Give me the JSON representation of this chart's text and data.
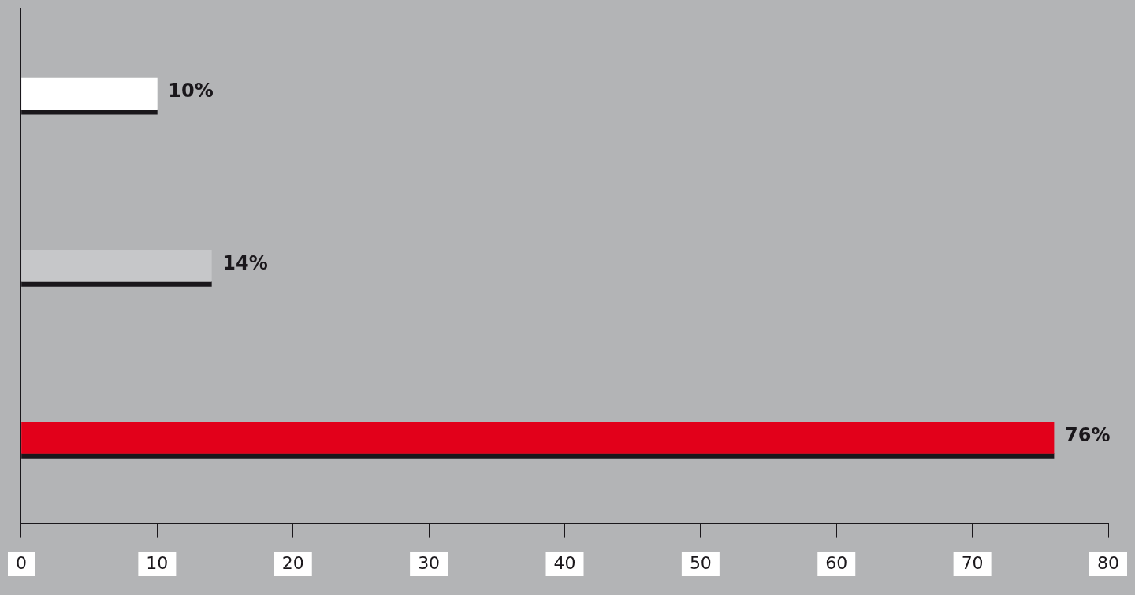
{
  "chart_data": {
    "type": "bar",
    "orientation": "horizontal",
    "categories": [
      null,
      null,
      null
    ],
    "series": [
      {
        "colors": [
          "#ffffff",
          "#c6c7c9",
          "#e2001a"
        ],
        "values": [
          10,
          14,
          76
        ]
      },
      {
        "color": "#1a171b",
        "values": [
          10,
          14,
          76
        ]
      }
    ],
    "value_labels": [
      "10%",
      "14%",
      "76%"
    ],
    "xlim": [
      0,
      80
    ],
    "xticks": [
      0,
      10,
      20,
      30,
      40,
      50,
      60,
      70,
      80
    ],
    "grid": false,
    "legend": false
  }
}
